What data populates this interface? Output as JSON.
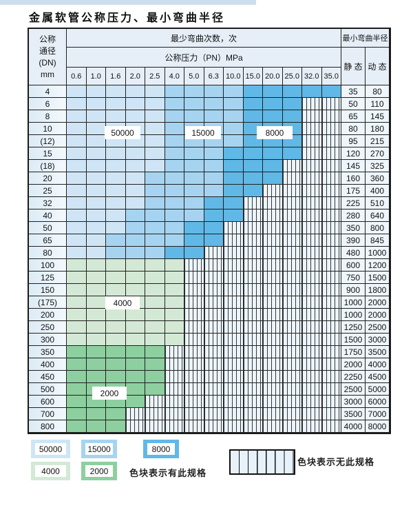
{
  "page": {
    "title": "金属软管公称压力、最小弯曲半径"
  },
  "colors": {
    "blue_light": "#cfe5f5",
    "blue_mid": "#a6d4f0",
    "blue_dark": "#60b8e6",
    "green_light": "#d4e9d5",
    "green_mid": "#8dcf9f",
    "header_bg": "#e6eff7",
    "top_strip": "#ccdeed",
    "hatch_bg": "#edf4fa"
  },
  "table": {
    "header": {
      "dn_label_lines": [
        "公称",
        "通径",
        "(DN)",
        "mm"
      ],
      "cycles_label": "最少弯曲次数，次",
      "radius_label": "最小弯曲半径",
      "pressure_label": "公称压力（PN）MPa",
      "static_label": "静 态",
      "dynamic_label": "动 态",
      "pressure_columns": [
        "0.6",
        "1.0",
        "1.6",
        "2.0",
        "2.5",
        "4.0",
        "5.0",
        "6.3",
        "10.0",
        "15.0",
        "20.0",
        "25.0",
        "32.0",
        "35.0"
      ]
    },
    "zone_legend_meaning": {
      "b1": "50000",
      "b2": "15000",
      "b3": "8000",
      "g1": "4000",
      "g2": "2000",
      "x": "no-spec"
    },
    "rows": [
      {
        "dn": "4",
        "static": "35",
        "dynamic": "80",
        "cells": [
          "b1",
          "b1",
          "b1",
          "b1",
          "b1",
          "b2",
          "b2",
          "b2",
          "b2",
          "b3",
          "b3",
          "b3",
          "b3",
          "b3"
        ]
      },
      {
        "dn": "6",
        "static": "50",
        "dynamic": "110",
        "cells": [
          "b1",
          "b1",
          "b1",
          "b1",
          "b1",
          "b2",
          "b2",
          "b2",
          "b2",
          "b3",
          "b3",
          "b3",
          "x",
          "x"
        ]
      },
      {
        "dn": "8",
        "static": "65",
        "dynamic": "145",
        "cells": [
          "b1",
          "b1",
          "b1",
          "b1",
          "b1",
          "b2",
          "b2",
          "b2",
          "b2",
          "b3",
          "b3",
          "b3",
          "x",
          "x"
        ]
      },
      {
        "dn": "10",
        "static": "80",
        "dynamic": "180",
        "cells": [
          "b1",
          "b1",
          "b1",
          "b1",
          "b1",
          "b2",
          "b2",
          "b2",
          "b2",
          "b3",
          "b3",
          "b3",
          "x",
          "x"
        ]
      },
      {
        "dn": "(12)",
        "static": "95",
        "dynamic": "215",
        "cells": [
          "b1",
          "b1",
          "b1",
          "b1",
          "b1",
          "b2",
          "b2",
          "b2",
          "b2",
          "b3",
          "b3",
          "b3",
          "x",
          "x"
        ]
      },
      {
        "dn": "15",
        "static": "120",
        "dynamic": "270",
        "cells": [
          "b1",
          "b1",
          "b1",
          "b1",
          "b1",
          "b2",
          "b2",
          "b2",
          "b3",
          "b3",
          "b3",
          "b3",
          "x",
          "x"
        ]
      },
      {
        "dn": "(18)",
        "static": "145",
        "dynamic": "325",
        "cells": [
          "b1",
          "b1",
          "b1",
          "b1",
          "b1",
          "b2",
          "b2",
          "b2",
          "b3",
          "b3",
          "b3",
          "x",
          "x",
          "x"
        ]
      },
      {
        "dn": "20",
        "static": "160",
        "dynamic": "360",
        "cells": [
          "b1",
          "b1",
          "b1",
          "b1",
          "b2",
          "b2",
          "b2",
          "b2",
          "b3",
          "b3",
          "b3",
          "x",
          "x",
          "x"
        ]
      },
      {
        "dn": "25",
        "static": "175",
        "dynamic": "400",
        "cells": [
          "b1",
          "b1",
          "b1",
          "b1",
          "b2",
          "b2",
          "b2",
          "b2",
          "b3",
          "b3",
          "x",
          "x",
          "x",
          "x"
        ]
      },
      {
        "dn": "32",
        "static": "225",
        "dynamic": "510",
        "cells": [
          "b1",
          "b1",
          "b1",
          "b1",
          "b2",
          "b2",
          "b2",
          "b3",
          "b3",
          "x",
          "x",
          "x",
          "x",
          "x"
        ]
      },
      {
        "dn": "40",
        "static": "280",
        "dynamic": "640",
        "cells": [
          "b1",
          "b1",
          "b1",
          "b2",
          "b2",
          "b2",
          "b2",
          "b3",
          "b3",
          "x",
          "x",
          "x",
          "x",
          "x"
        ]
      },
      {
        "dn": "50",
        "static": "350",
        "dynamic": "800",
        "cells": [
          "b1",
          "b1",
          "b1",
          "b2",
          "b2",
          "b2",
          "b3",
          "b3",
          "x",
          "x",
          "x",
          "x",
          "x",
          "x"
        ]
      },
      {
        "dn": "65",
        "static": "390",
        "dynamic": "845",
        "cells": [
          "b1",
          "b1",
          "b2",
          "b2",
          "b2",
          "b2",
          "b3",
          "b3",
          "x",
          "x",
          "x",
          "x",
          "x",
          "x"
        ]
      },
      {
        "dn": "80",
        "static": "480",
        "dynamic": "1000",
        "cells": [
          "b1",
          "b1",
          "b2",
          "b2",
          "b2",
          "b3",
          "b3",
          "x",
          "x",
          "x",
          "x",
          "x",
          "x",
          "x"
        ]
      },
      {
        "dn": "100",
        "static": "600",
        "dynamic": "1200",
        "cells": [
          "g1",
          "g1",
          "g1",
          "g1",
          "g1",
          "g1",
          "x",
          "x",
          "x",
          "x",
          "x",
          "x",
          "x",
          "x"
        ]
      },
      {
        "dn": "125",
        "static": "750",
        "dynamic": "1500",
        "cells": [
          "g1",
          "g1",
          "g1",
          "g1",
          "g1",
          "g1",
          "x",
          "x",
          "x",
          "x",
          "x",
          "x",
          "x",
          "x"
        ]
      },
      {
        "dn": "150",
        "static": "900",
        "dynamic": "1800",
        "cells": [
          "g1",
          "g1",
          "g1",
          "g1",
          "g1",
          "g1",
          "x",
          "x",
          "x",
          "x",
          "x",
          "x",
          "x",
          "x"
        ]
      },
      {
        "dn": "(175)",
        "static": "1000",
        "dynamic": "2000",
        "cells": [
          "g1",
          "g1",
          "g1",
          "g1",
          "g1",
          "g1",
          "x",
          "x",
          "x",
          "x",
          "x",
          "x",
          "x",
          "x"
        ]
      },
      {
        "dn": "200",
        "static": "1000",
        "dynamic": "2000",
        "cells": [
          "g1",
          "g1",
          "g1",
          "g1",
          "g1",
          "g1",
          "x",
          "x",
          "x",
          "x",
          "x",
          "x",
          "x",
          "x"
        ]
      },
      {
        "dn": "250",
        "static": "1250",
        "dynamic": "2500",
        "cells": [
          "g1",
          "g1",
          "g1",
          "g1",
          "g1",
          "g1",
          "x",
          "x",
          "x",
          "x",
          "x",
          "x",
          "x",
          "x"
        ]
      },
      {
        "dn": "300",
        "static": "1500",
        "dynamic": "3000",
        "cells": [
          "g1",
          "g1",
          "g1",
          "g1",
          "g1",
          "g1",
          "x",
          "x",
          "x",
          "x",
          "x",
          "x",
          "x",
          "x"
        ]
      },
      {
        "dn": "350",
        "static": "1750",
        "dynamic": "3500",
        "cells": [
          "g2",
          "g2",
          "g2",
          "g2",
          "g2",
          "x",
          "x",
          "x",
          "x",
          "x",
          "x",
          "x",
          "x",
          "x"
        ]
      },
      {
        "dn": "400",
        "static": "2000",
        "dynamic": "4000",
        "cells": [
          "g2",
          "g2",
          "g2",
          "g2",
          "g2",
          "x",
          "x",
          "x",
          "x",
          "x",
          "x",
          "x",
          "x",
          "x"
        ]
      },
      {
        "dn": "450",
        "static": "2250",
        "dynamic": "4500",
        "cells": [
          "g2",
          "g2",
          "g2",
          "g2",
          "g2",
          "x",
          "x",
          "x",
          "x",
          "x",
          "x",
          "x",
          "x",
          "x"
        ]
      },
      {
        "dn": "500",
        "static": "2500",
        "dynamic": "5000",
        "cells": [
          "g2",
          "g2",
          "g2",
          "g2",
          "g2",
          "x",
          "x",
          "x",
          "x",
          "x",
          "x",
          "x",
          "x",
          "x"
        ]
      },
      {
        "dn": "600",
        "static": "3000",
        "dynamic": "6000",
        "cells": [
          "g2",
          "g2",
          "g2",
          "g2",
          "x",
          "x",
          "x",
          "x",
          "x",
          "x",
          "x",
          "x",
          "x",
          "x"
        ]
      },
      {
        "dn": "700",
        "static": "3500",
        "dynamic": "7000",
        "cells": [
          "g2",
          "g2",
          "g2",
          "x",
          "x",
          "x",
          "x",
          "x",
          "x",
          "x",
          "x",
          "x",
          "x",
          "x"
        ]
      },
      {
        "dn": "800",
        "static": "4000",
        "dynamic": "8000",
        "cells": [
          "g2",
          "g2",
          "g2",
          "x",
          "x",
          "x",
          "x",
          "x",
          "x",
          "x",
          "x",
          "x",
          "x",
          "x"
        ]
      }
    ],
    "overlay_labels": [
      "50000",
      "15000",
      "8000",
      "4000",
      "2000"
    ]
  },
  "legend": {
    "swatches": [
      {
        "value": "50000",
        "color_key": "b1"
      },
      {
        "value": "15000",
        "color_key": "b2"
      },
      {
        "value": "8000",
        "color_key": "b3"
      },
      {
        "value": "4000",
        "color_key": "g1"
      },
      {
        "value": "2000",
        "color_key": "g2"
      }
    ],
    "has_spec_note": "色块表示有此规格",
    "no_spec_note": "色块表示无此规格"
  }
}
